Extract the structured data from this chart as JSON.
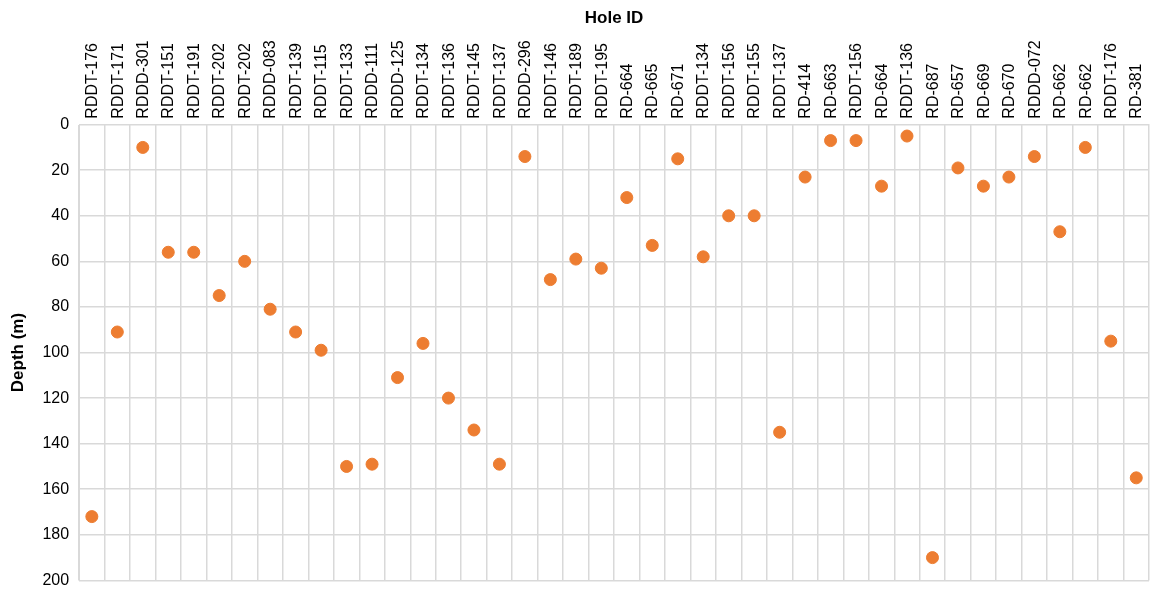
{
  "chart_data": {
    "type": "scatter",
    "xlabel": "Hole ID",
    "ylabel": "Depth (m)",
    "categories": [
      "RDDT-176",
      "RDDT-171",
      "RDDD-301",
      "RDDT-151",
      "RDDT-191",
      "RDDT-202",
      "RDDT-202",
      "RDDD-083",
      "RDDT-139",
      "RDDT-115",
      "RDDT-133",
      "RDDD-111",
      "RDDD-125",
      "RDDT-134",
      "RDDT-136",
      "RDDT-145",
      "RDDT-137",
      "RDDD-296",
      "RDDT-146",
      "RDDT-189",
      "RDDT-195",
      "RD-664",
      "RD-665",
      "RD-671",
      "RDDT-134",
      "RDDT-156",
      "RDDT-155",
      "RDDT-137",
      "RD-414",
      "RD-663",
      "RDDT-156",
      "RD-664",
      "RDDT-136",
      "RD-687",
      "RD-657",
      "RD-669",
      "RD-670",
      "RDDD-072",
      "RD-662",
      "RD-662",
      "RDDT-176",
      "RD-381"
    ],
    "series": [
      {
        "color": "#ed7d31",
        "values": [
          172,
          91,
          10,
          56,
          56,
          75,
          60,
          81,
          91,
          99,
          150,
          149,
          111,
          96,
          120,
          134,
          149,
          14,
          68,
          59,
          63,
          32,
          53,
          15,
          58,
          40,
          40,
          135,
          23,
          7,
          7,
          27,
          5,
          190,
          19,
          27,
          23,
          14,
          47,
          10,
          95,
          155
        ]
      }
    ],
    "ylim": [
      200,
      0
    ],
    "yticks": [
      0,
      20,
      40,
      60,
      80,
      100,
      120,
      140,
      160,
      180,
      200
    ],
    "grid": true,
    "legend": false,
    "marker": "circle"
  }
}
